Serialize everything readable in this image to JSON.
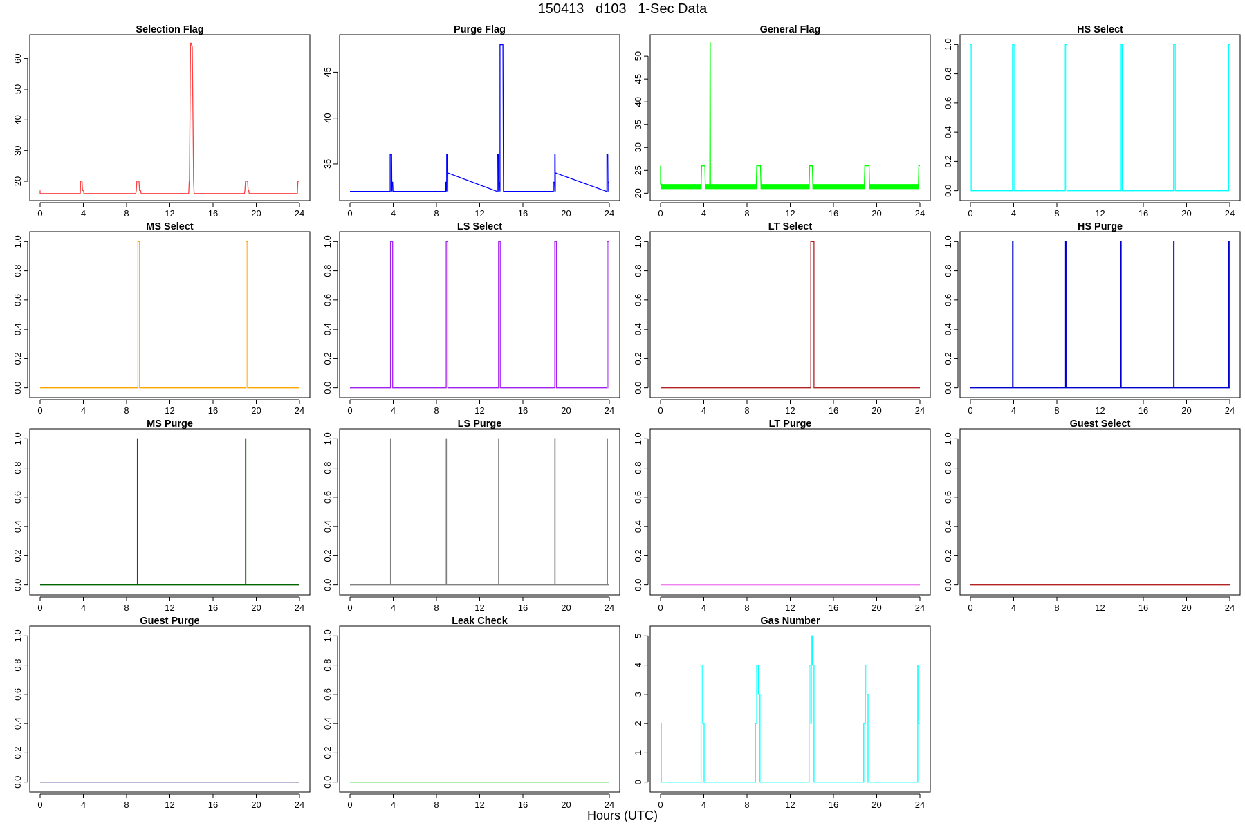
{
  "figure": {
    "title": "150413   d103   1-Sec Data",
    "xlabel": "Hours (UTC)"
  },
  "chart_data": [
    {
      "type": "line",
      "title": "Selection Flag",
      "color": "#ff4040",
      "xlabel": "Hours (UTC)",
      "ylabel": "",
      "xlim": [
        0,
        24
      ],
      "xticks": [
        0,
        4,
        8,
        12,
        16,
        20,
        24
      ],
      "ylim": [
        15.5,
        66
      ],
      "yticks": [
        20,
        30,
        40,
        50,
        60
      ],
      "x": [
        0,
        0,
        0.1,
        3.72,
        3.75,
        3.88,
        3.92,
        4.02,
        4.05,
        8.85,
        8.9,
        8.95,
        9.15,
        9.2,
        9.3,
        9.35,
        13.75,
        13.8,
        13.82,
        13.92,
        13.98,
        14.05,
        14.08,
        14.2,
        14.25,
        18.9,
        18.95,
        19.0,
        19.2,
        19.25,
        19.3,
        19.35,
        23.8,
        23.85,
        23.95,
        24
      ],
      "y": [
        17,
        16,
        16,
        16,
        20,
        20,
        17,
        17,
        16,
        16,
        17,
        20,
        20,
        17,
        17,
        16,
        16,
        20,
        20,
        65,
        65,
        64,
        64,
        20,
        16,
        16,
        17,
        20,
        20,
        17,
        17,
        16,
        16,
        20,
        20,
        20
      ]
    },
    {
      "type": "line",
      "title": "Purge Flag",
      "color": "#0000ff",
      "xlabel": "Hours (UTC)",
      "ylabel": "",
      "xlim": [
        0,
        24
      ],
      "xticks": [
        0,
        4,
        8,
        12,
        16,
        20,
        24
      ],
      "ylim": [
        31.6,
        48.5
      ],
      "yticks": [
        35,
        40,
        45
      ],
      "x": [
        0,
        3.7,
        3.72,
        3.72,
        3.85,
        3.88,
        3.88,
        3.95,
        3.98,
        8.85,
        8.86,
        8.86,
        8.92,
        8.95,
        8.95,
        9.02,
        9.05,
        9.05,
        9.08,
        13.62,
        13.64,
        13.64,
        13.72,
        13.75,
        13.75,
        13.85,
        13.88,
        13.88,
        14.15,
        14.2,
        18.8,
        18.82,
        18.82,
        18.92,
        18.95,
        18.95,
        18.98,
        19.0,
        19.0,
        19.05,
        23.75,
        23.77,
        23.77,
        23.85,
        23.88,
        23.88,
        24
      ],
      "y": [
        32,
        32,
        32,
        36,
        36,
        32,
        33,
        33,
        32,
        32,
        32,
        33,
        33,
        32,
        36,
        36,
        32,
        34,
        34,
        32,
        32,
        36,
        36,
        32,
        33,
        33,
        32,
        48,
        48,
        32,
        32,
        32,
        33,
        33,
        32,
        36,
        36,
        32,
        34,
        34,
        32,
        32,
        36,
        36,
        32,
        33,
        33
      ]
    },
    {
      "type": "line",
      "title": "General Flag",
      "color": "#00ff00",
      "xlabel": "Hours (UTC)",
      "ylabel": "",
      "xlim": [
        0,
        24
      ],
      "xticks": [
        0,
        4,
        8,
        12,
        16,
        20,
        24
      ],
      "ylim": [
        19.6,
        53.5
      ],
      "yticks": [
        20,
        25,
        30,
        35,
        40,
        45,
        50
      ],
      "x": [
        0,
        0,
        0.1,
        0.1,
        3.75,
        3.8,
        4.1,
        4.15,
        4.55,
        4.58,
        4.6,
        4.62,
        8.85,
        8.9,
        9.25,
        9.3,
        13.75,
        13.8,
        14.05,
        14.1,
        18.85,
        18.9,
        19.3,
        19.35,
        23.85,
        23.9,
        24
      ],
      "y": [
        26,
        22,
        22,
        21,
        21,
        26,
        26,
        21,
        21,
        53,
        53,
        21,
        21,
        26,
        26,
        21,
        21,
        26,
        26,
        21,
        21,
        26,
        26,
        21,
        21,
        26,
        26
      ],
      "fill_band": [
        21,
        22
      ]
    },
    {
      "type": "line",
      "title": "HS Select",
      "color": "#00ffff",
      "xlabel": "Hours (UTC)",
      "ylabel": "",
      "xlim": [
        0,
        24
      ],
      "xticks": [
        0,
        4,
        8,
        12,
        16,
        20,
        24
      ],
      "ylim": [
        -0.03,
        1.03
      ],
      "yticks": [
        0.0,
        0.2,
        0.4,
        0.6,
        0.8,
        1.0
      ],
      "x": [
        0,
        0,
        0.07,
        0.07,
        3.9,
        3.9,
        4.03,
        4.03,
        8.78,
        8.78,
        8.92,
        8.92,
        13.95,
        13.95,
        14.05,
        14.05,
        18.8,
        18.8,
        18.95,
        18.95,
        23.9,
        23.9,
        24
      ],
      "y": [
        1,
        1,
        1,
        0,
        0,
        1,
        1,
        0,
        0,
        1,
        1,
        0,
        0,
        1,
        1,
        0,
        0,
        1,
        1,
        0,
        0,
        1,
        1
      ]
    },
    {
      "type": "line",
      "title": "MS Select",
      "color": "#ffa500",
      "xlabel": "Hours (UTC)",
      "ylabel": "",
      "xlim": [
        0,
        24
      ],
      "xticks": [
        0,
        4,
        8,
        12,
        16,
        20,
        24
      ],
      "ylim": [
        -0.03,
        1.03
      ],
      "yticks": [
        0.0,
        0.2,
        0.4,
        0.6,
        0.8,
        1.0
      ],
      "x": [
        0,
        9.05,
        9.05,
        9.2,
        9.2,
        19.05,
        19.05,
        19.2,
        19.2,
        24
      ],
      "y": [
        0,
        0,
        1,
        1,
        0,
        0,
        1,
        1,
        0,
        0
      ]
    },
    {
      "type": "line",
      "title": "LS Select",
      "color": "#a020f0",
      "xlabel": "Hours (UTC)",
      "ylabel": "",
      "xlim": [
        0,
        24
      ],
      "xticks": [
        0,
        4,
        8,
        12,
        16,
        20,
        24
      ],
      "ylim": [
        -0.03,
        1.03
      ],
      "yticks": [
        0.0,
        0.2,
        0.4,
        0.6,
        0.8,
        1.0
      ],
      "x": [
        0,
        3.75,
        3.75,
        3.95,
        3.95,
        8.9,
        8.9,
        9.05,
        9.05,
        13.75,
        13.75,
        13.9,
        13.9,
        18.95,
        18.95,
        19.1,
        19.1,
        23.8,
        23.8,
        23.95,
        23.95,
        24
      ],
      "y": [
        0,
        0,
        1,
        1,
        0,
        0,
        1,
        1,
        0,
        0,
        1,
        1,
        0,
        0,
        1,
        1,
        0,
        0,
        1,
        1,
        0,
        0
      ]
    },
    {
      "type": "line",
      "title": "LT Select",
      "color": "#b22222",
      "xlabel": "Hours (UTC)",
      "ylabel": "",
      "xlim": [
        0,
        24
      ],
      "xticks": [
        0,
        4,
        8,
        12,
        16,
        20,
        24
      ],
      "ylim": [
        -0.03,
        1.03
      ],
      "yticks": [
        0.0,
        0.2,
        0.4,
        0.6,
        0.8,
        1.0
      ],
      "x": [
        0,
        13.9,
        13.9,
        14.2,
        14.2,
        24
      ],
      "y": [
        0,
        0,
        1,
        1,
        0,
        0
      ]
    },
    {
      "type": "line",
      "title": "HS Purge",
      "color": "#0000cd",
      "xlabel": "Hours (UTC)",
      "ylabel": "",
      "xlim": [
        0,
        24
      ],
      "xticks": [
        0,
        4,
        8,
        12,
        16,
        20,
        24
      ],
      "ylim": [
        -0.03,
        1.03
      ],
      "yticks": [
        0.0,
        0.2,
        0.4,
        0.6,
        0.8,
        1.0
      ],
      "x": [
        0,
        3.9,
        3.9,
        3.95,
        3.95,
        8.8,
        8.8,
        8.85,
        8.85,
        13.9,
        13.9,
        13.95,
        13.95,
        18.8,
        18.8,
        18.85,
        18.85,
        23.9,
        23.9,
        23.95,
        23.95,
        24
      ],
      "y": [
        0,
        0,
        1,
        1,
        0,
        0,
        1,
        1,
        0,
        0,
        1,
        1,
        0,
        0,
        1,
        1,
        0,
        0,
        1,
        1,
        0,
        0
      ]
    },
    {
      "type": "line",
      "title": "MS Purge",
      "color": "#006400",
      "xlabel": "Hours (UTC)",
      "ylabel": "",
      "xlim": [
        0,
        24
      ],
      "xticks": [
        0,
        4,
        8,
        12,
        16,
        20,
        24
      ],
      "ylim": [
        -0.03,
        1.03
      ],
      "yticks": [
        0.0,
        0.2,
        0.4,
        0.6,
        0.8,
        1.0
      ],
      "x": [
        0,
        9.0,
        9.0,
        9.04,
        9.04,
        19.0,
        19.0,
        19.04,
        19.04,
        24
      ],
      "y": [
        0,
        0,
        1,
        1,
        0,
        0,
        1,
        1,
        0,
        0
      ]
    },
    {
      "type": "line",
      "title": "LS Purge",
      "color": "#808080",
      "xlabel": "Hours (UTC)",
      "ylabel": "",
      "xlim": [
        0,
        24
      ],
      "xticks": [
        0,
        4,
        8,
        12,
        16,
        20,
        24
      ],
      "ylim": [
        -0.03,
        1.03
      ],
      "yticks": [
        0.0,
        0.2,
        0.4,
        0.6,
        0.8,
        1.0
      ],
      "x": [
        0,
        3.75,
        3.75,
        3.78,
        3.78,
        8.9,
        8.9,
        8.93,
        8.93,
        13.75,
        13.75,
        13.78,
        13.78,
        18.95,
        18.95,
        18.98,
        18.98,
        23.8,
        23.8,
        23.83,
        23.83,
        24
      ],
      "y": [
        0,
        0,
        1,
        1,
        0,
        0,
        1,
        1,
        0,
        0,
        1,
        1,
        0,
        0,
        1,
        1,
        0,
        0,
        1,
        1,
        0,
        0
      ]
    },
    {
      "type": "line",
      "title": "LT Purge",
      "color": "#ee82ee",
      "xlabel": "Hours (UTC)",
      "ylabel": "",
      "xlim": [
        0,
        24
      ],
      "xticks": [
        0,
        4,
        8,
        12,
        16,
        20,
        24
      ],
      "ylim": [
        -0.03,
        1.03
      ],
      "yticks": [
        0.0,
        0.2,
        0.4,
        0.6,
        0.8,
        1.0
      ],
      "x": [
        0,
        24
      ],
      "y": [
        0,
        0
      ]
    },
    {
      "type": "line",
      "title": "Guest Select",
      "color": "#b22222",
      "xlabel": "Hours (UTC)",
      "ylabel": "",
      "xlim": [
        0,
        24
      ],
      "xticks": [
        0,
        4,
        8,
        12,
        16,
        20,
        24
      ],
      "ylim": [
        -0.03,
        1.03
      ],
      "yticks": [
        0.0,
        0.2,
        0.4,
        0.6,
        0.8,
        1.0
      ],
      "x": [
        0,
        24
      ],
      "y": [
        0,
        0
      ]
    },
    {
      "type": "line",
      "title": "Guest Purge",
      "color": "#483d8b",
      "xlabel": "Hours (UTC)",
      "ylabel": "",
      "xlim": [
        0,
        24
      ],
      "xticks": [
        0,
        4,
        8,
        12,
        16,
        20,
        24
      ],
      "ylim": [
        -0.03,
        1.03
      ],
      "yticks": [
        0.0,
        0.2,
        0.4,
        0.6,
        0.8,
        1.0
      ],
      "x": [
        0,
        24
      ],
      "y": [
        0,
        0
      ]
    },
    {
      "type": "line",
      "title": "Leak Check",
      "color": "#32cd32",
      "xlabel": "Hours (UTC)",
      "ylabel": "",
      "xlim": [
        0,
        24
      ],
      "xticks": [
        0,
        4,
        8,
        12,
        16,
        20,
        24
      ],
      "ylim": [
        -0.03,
        1.03
      ],
      "yticks": [
        0.0,
        0.2,
        0.4,
        0.6,
        0.8,
        1.0
      ],
      "x": [
        0,
        24
      ],
      "y": [
        0,
        0
      ]
    },
    {
      "type": "line",
      "title": "Gas Number",
      "color": "#00ffff",
      "xlabel": "Hours (UTC)",
      "ylabel": "",
      "xlim": [
        0,
        24
      ],
      "xticks": [
        0,
        4,
        8,
        12,
        16,
        20,
        24
      ],
      "ylim": [
        -0.15,
        5.15
      ],
      "yticks": [
        0,
        1,
        2,
        3,
        4,
        5
      ],
      "x": [
        0,
        0,
        0.07,
        0.07,
        3.75,
        3.75,
        3.9,
        3.9,
        4.03,
        4.03,
        8.78,
        8.78,
        8.9,
        8.9,
        9.05,
        9.05,
        9.2,
        9.2,
        13.75,
        13.75,
        13.9,
        13.9,
        13.95,
        13.95,
        14.05,
        14.05,
        14.2,
        14.2,
        18.8,
        18.8,
        18.95,
        18.95,
        19.1,
        19.1,
        19.2,
        19.2,
        23.8,
        23.8,
        23.9,
        23.9,
        24
      ],
      "y": [
        2,
        2,
        2,
        0,
        0,
        4,
        4,
        2,
        2,
        0,
        0,
        2,
        2,
        4,
        4,
        3,
        3,
        0,
        0,
        4,
        4,
        2,
        2,
        5,
        5,
        4,
        4,
        0,
        0,
        2,
        2,
        4,
        4,
        3,
        3,
        0,
        0,
        4,
        4,
        2,
        2
      ]
    }
  ]
}
